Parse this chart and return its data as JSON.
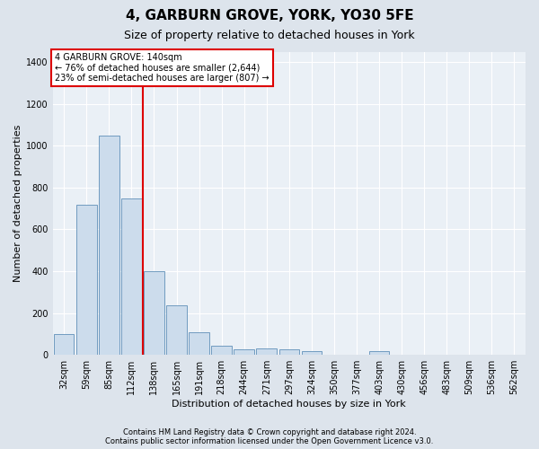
{
  "title": "4, GARBURN GROVE, YORK, YO30 5FE",
  "subtitle": "Size of property relative to detached houses in York",
  "xlabel": "Distribution of detached houses by size in York",
  "ylabel": "Number of detached properties",
  "footnote1": "Contains HM Land Registry data © Crown copyright and database right 2024.",
  "footnote2": "Contains public sector information licensed under the Open Government Licence v3.0.",
  "bar_labels": [
    "32sqm",
    "59sqm",
    "85sqm",
    "112sqm",
    "138sqm",
    "165sqm",
    "191sqm",
    "218sqm",
    "244sqm",
    "271sqm",
    "297sqm",
    "324sqm",
    "350sqm",
    "377sqm",
    "403sqm",
    "430sqm",
    "456sqm",
    "483sqm",
    "509sqm",
    "536sqm",
    "562sqm"
  ],
  "bar_values": [
    100,
    720,
    1050,
    750,
    400,
    235,
    110,
    45,
    25,
    30,
    25,
    20,
    0,
    0,
    20,
    0,
    0,
    0,
    0,
    0,
    0
  ],
  "bar_color": "#ccdcec",
  "bar_edgecolor": "#6090b8",
  "vline_index": 4,
  "vline_color": "#dd0000",
  "annotation_line1": "4 GARBURN GROVE: 140sqm",
  "annotation_line2": "← 76% of detached houses are smaller (2,644)",
  "annotation_line3": "23% of semi-detached houses are larger (807) →",
  "annotation_box_facecolor": "white",
  "annotation_box_edgecolor": "#dd0000",
  "ylim": [
    0,
    1450
  ],
  "yticks": [
    0,
    200,
    400,
    600,
    800,
    1000,
    1200,
    1400
  ],
  "fig_bg_color": "#dde4ec",
  "plot_bg_color": "#eaf0f6",
  "grid_color": "white",
  "title_fontsize": 11,
  "subtitle_fontsize": 9,
  "label_fontsize": 8,
  "tick_fontsize": 7,
  "footnote_fontsize": 6
}
